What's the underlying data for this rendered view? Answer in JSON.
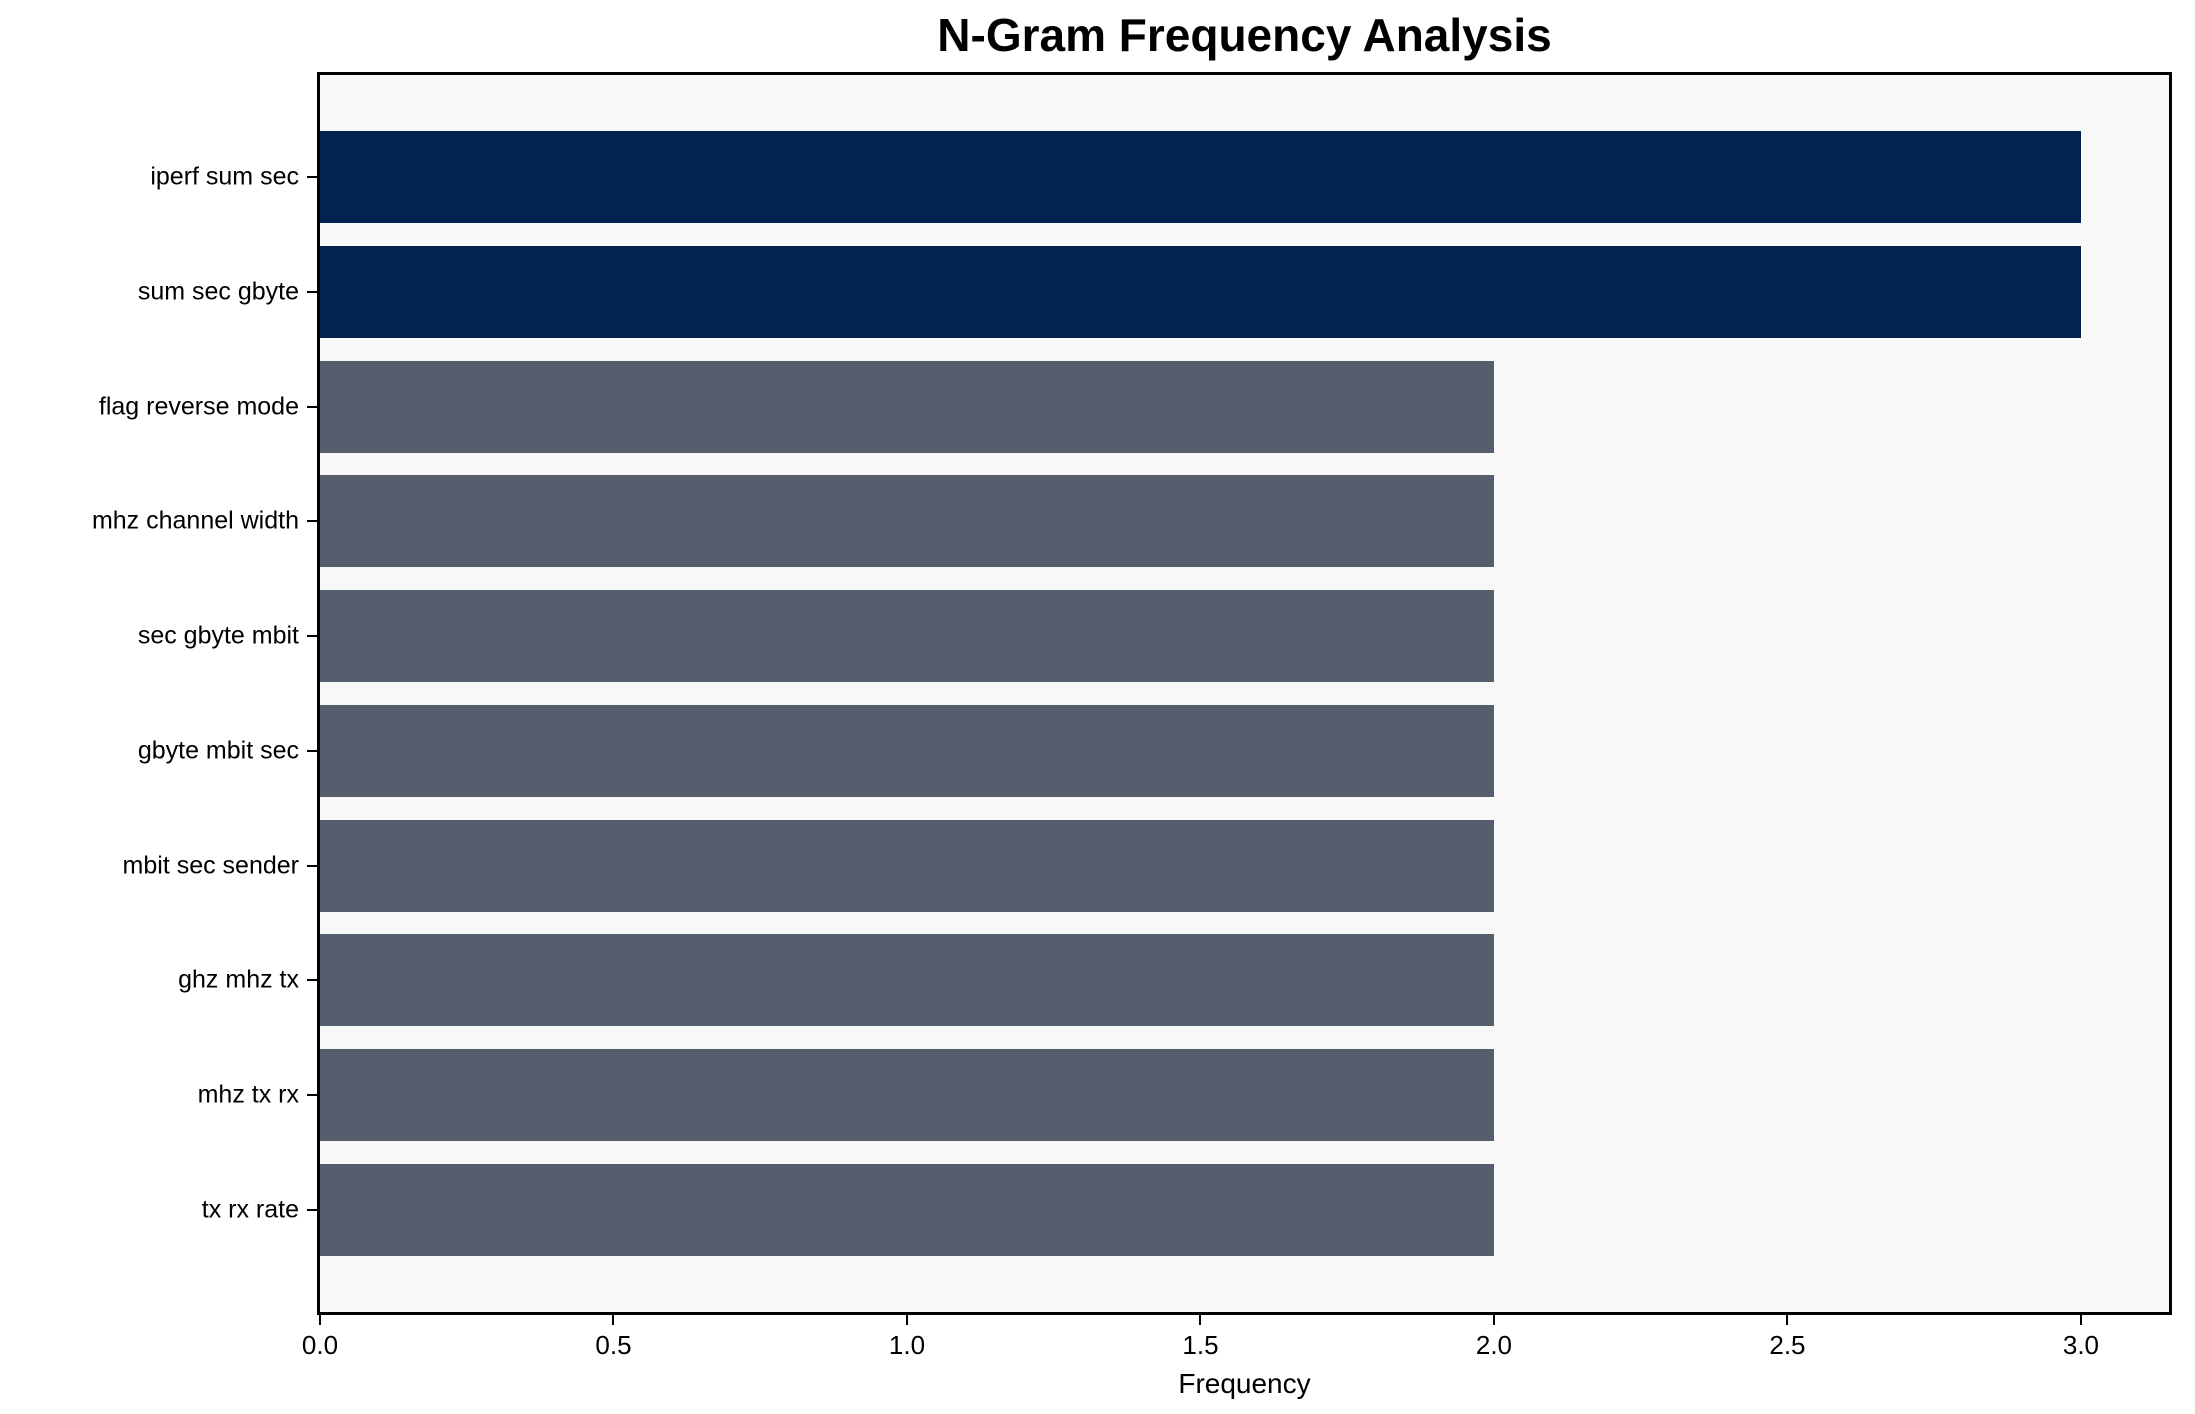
{
  "chart_data": {
    "type": "bar",
    "orientation": "horizontal",
    "title": "N-Gram Frequency Analysis",
    "xlabel": "Frequency",
    "ylabel": "",
    "categories": [
      "iperf sum sec",
      "sum sec gbyte",
      "flag reverse mode",
      "mhz channel width",
      "sec gbyte mbit",
      "gbyte mbit sec",
      "mbit sec sender",
      "ghz mhz tx",
      "mhz tx rx",
      "tx rx rate"
    ],
    "values": [
      3,
      3,
      2,
      2,
      2,
      2,
      2,
      2,
      2,
      2
    ],
    "bar_colors": [
      "#02234F",
      "#02234F",
      "#565D6D",
      "#565D6D",
      "#565D6D",
      "#565D6D",
      "#565D6D",
      "#565D6D",
      "#565D6D",
      "#565D6D"
    ],
    "xlim": [
      0,
      3.15
    ],
    "xticks": [
      0.0,
      0.5,
      1.0,
      1.5,
      2.0,
      2.5,
      3.0
    ],
    "xtick_labels": [
      "0.0",
      "0.5",
      "1.0",
      "1.5",
      "2.0",
      "2.5",
      "3.0"
    ],
    "grid": "off",
    "legend": "none",
    "colors": {
      "highlight_bar": "#02234F",
      "default_bar": "#565D6D",
      "plot_background": "#F8F8F9",
      "figure_background": "#FFFFFF",
      "spine": "#000000",
      "text": "#000000"
    }
  }
}
